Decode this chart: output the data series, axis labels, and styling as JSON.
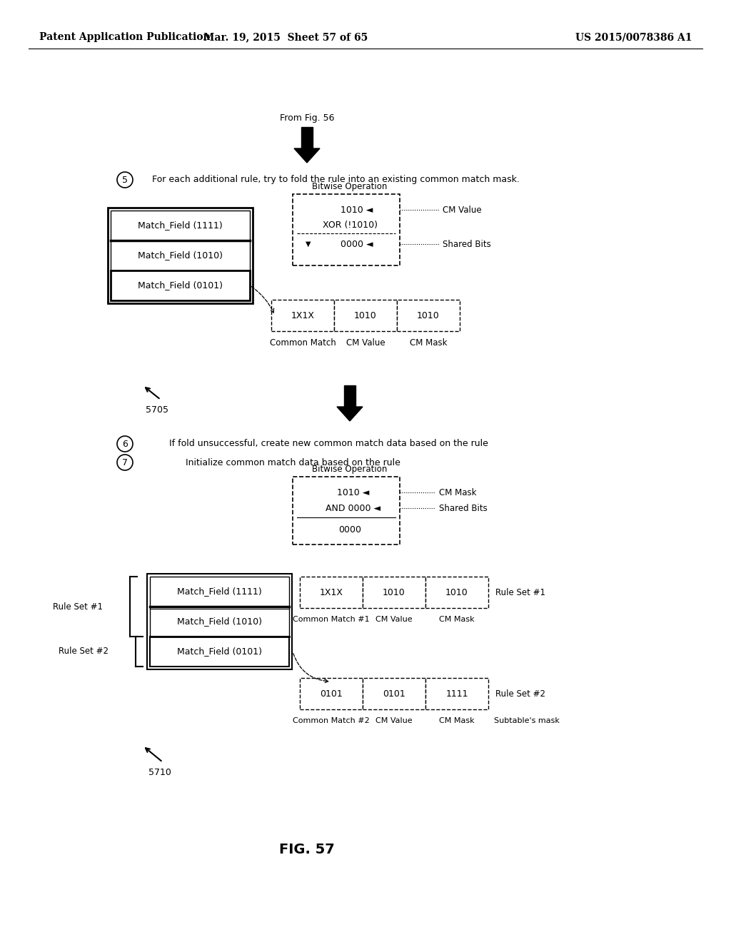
{
  "header_left": "Patent Application Publication",
  "header_mid": "Mar. 19, 2015  Sheet 57 of 65",
  "header_right": "US 2015/0078386 A1",
  "fig_label": "FIG. 57",
  "from_fig": "From Fig. 56",
  "step5_text": "For each additional rule, try to fold the rule into an existing common match mask.",
  "step6_text": "If fold unsuccessful, create new common match data based on the rule",
  "step7_text": "Initialize common match data based on the rule",
  "bitwise_op1_title": "Bitwise Operation",
  "bitwise_op2_title": "Bitwise Operation",
  "match_fields_top": [
    "Match_Field (1111)",
    "Match_Field (1010)",
    "Match_Field (0101)"
  ],
  "bottom_boxes1": [
    "1X1X",
    "1010",
    "1010"
  ],
  "bottom_labels1": [
    "Common Match",
    "CM Value",
    "CM Mask"
  ],
  "ref_5705": "5705",
  "ref_5710": "5710",
  "match_fields_bottom": [
    "Match_Field (1111)",
    "Match_Field (1010)",
    "Match_Field (0101)"
  ],
  "bottom_boxes2a": [
    "1X1X",
    "1010",
    "1010"
  ],
  "bottom_labels2a": [
    "Common Match #1",
    "CM Value",
    "CM Mask"
  ],
  "bottom_boxes2b": [
    "0101",
    "0101",
    "1111"
  ],
  "bottom_labels2b": [
    "Common Match #2",
    "CM Value",
    "CM Mask"
  ],
  "ruleset1_box_label": "Rule Set #1",
  "ruleset2_box_label": "Rule Set #2",
  "subtable_mask": "Subtable's mask"
}
